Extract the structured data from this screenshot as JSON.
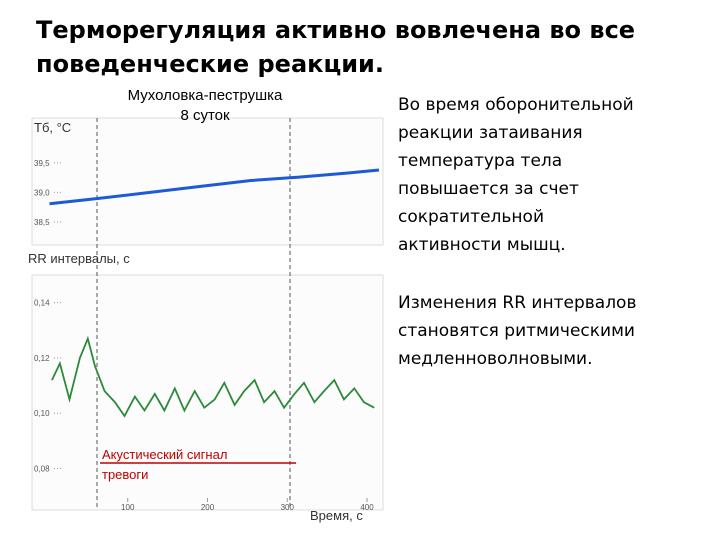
{
  "title_lines": [
    "Терморегуляция активно вовлечена во все",
    "поведенческие реакции."
  ],
  "right_text": {
    "paragraph_1": [
      "Во время оборонительной",
      "реакции затаивания",
      "температура тела",
      "повышается за счет",
      "сократительной",
      "активности мышц."
    ],
    "paragraph_2": [
      "Изменения RR интервалов",
      "становятся ритмическими",
      "медленноволновыми."
    ]
  },
  "chart_data": [
    {
      "type": "line",
      "subtitle_lines": [
        "Мухоловка-пеструшка",
        "8 суток"
      ],
      "y_label": "Tб, °C",
      "xlim": [
        -20,
        420
      ],
      "ylim": [
        38.11,
        40.26
      ],
      "yticks": [
        {
          "value": 38.5,
          "label": "38,5"
        },
        {
          "value": 39.0,
          "label": "39,0"
        },
        {
          "value": 39.5,
          "label": "39,5"
        }
      ],
      "series": [
        {
          "color": "#1e5ad6",
          "x": [
            2,
            65,
            128,
            190,
            253,
            315,
            378,
            415
          ],
          "values": [
            38.81,
            38.9,
            39.0,
            39.1,
            39.2,
            39.26,
            39.33,
            39.38
          ]
        }
      ]
    },
    {
      "type": "line",
      "y_label": "RR интервалы, с",
      "x_label": "Время, с",
      "xlim": [
        -20,
        420
      ],
      "ylim": [
        0.065,
        0.15
      ],
      "xticks": [
        100,
        200,
        300,
        400
      ],
      "yticks": [
        {
          "value": 0.08,
          "label": "0,08"
        },
        {
          "value": 0.1,
          "label": "0,10"
        },
        {
          "value": 0.12,
          "label": "0,12"
        },
        {
          "value": 0.14,
          "label": "0,14"
        }
      ],
      "annotation_lines": [
        "Акустический сигнал",
        "тревоги"
      ],
      "series": [
        {
          "color": "#2e8a3a",
          "x": [
            5,
            15,
            27,
            40,
            50,
            59,
            71,
            84,
            96,
            109,
            121,
            134,
            146,
            159,
            171,
            184,
            196,
            209,
            221,
            234,
            246,
            259,
            271,
            284,
            296,
            309,
            321,
            334,
            346,
            359,
            371,
            384,
            396,
            409
          ],
          "values": [
            0.112,
            0.118,
            0.105,
            0.12,
            0.127,
            0.117,
            0.108,
            0.104,
            0.099,
            0.106,
            0.101,
            0.107,
            0.101,
            0.109,
            0.101,
            0.108,
            0.102,
            0.105,
            0.111,
            0.103,
            0.108,
            0.112,
            0.104,
            0.108,
            0.102,
            0.107,
            0.111,
            0.104,
            0.108,
            0.112,
            0.105,
            0.109,
            0.104,
            0.102
          ]
        }
      ]
    }
  ]
}
